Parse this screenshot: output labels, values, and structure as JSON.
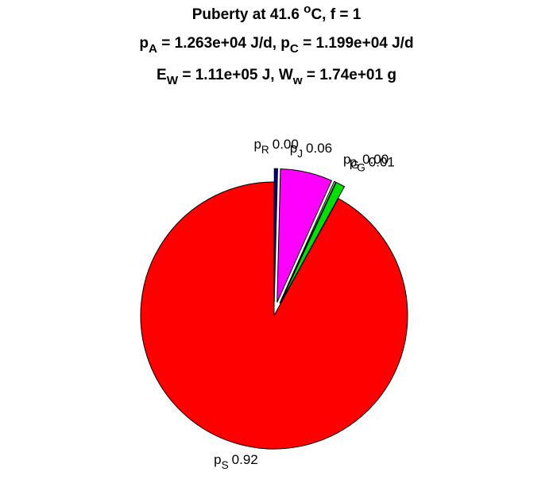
{
  "chart_data": {
    "type": "pie",
    "title_lines": [
      [
        {
          "text": "Puberty at 41.6 "
        },
        {
          "text": "o",
          "shift": "sup"
        },
        {
          "text": "C, f = 1"
        }
      ],
      [
        {
          "text": "p"
        },
        {
          "text": "A",
          "shift": "sub"
        },
        {
          "text": " = 1.263e+04 J/d,  p"
        },
        {
          "text": "C",
          "shift": "sub"
        },
        {
          "text": " = 1.199e+04 J/d"
        }
      ],
      [
        {
          "text": "E"
        },
        {
          "text": "W",
          "shift": "sub"
        },
        {
          "text": " = 1.11e+05 J, W"
        },
        {
          "text": "w",
          "shift": "sub"
        },
        {
          "text": " = 1.74e+01 g"
        }
      ]
    ],
    "categories": [
      [
        {
          "text": "p"
        },
        {
          "text": "R",
          "shift": "sub"
        }
      ],
      [
        {
          "text": "p"
        },
        {
          "text": "J",
          "shift": "sub"
        }
      ],
      [
        {
          "text": "p"
        },
        {
          "text": "G",
          "shift": "sub"
        }
      ],
      [
        {
          "text": "p"
        },
        {
          "text": "G",
          "shift": "sub"
        }
      ],
      [
        {
          "text": "p"
        },
        {
          "text": "S",
          "shift": "sub"
        }
      ]
    ],
    "values": [
      0.004,
      0.063,
      0.002,
      0.011,
      0.92
    ],
    "value_labels": [
      "0.00",
      "0.06",
      "0.00",
      "0.01",
      "0.92"
    ],
    "colors": [
      "#000080",
      "#ff00ff",
      "#80ff80",
      "#00e000",
      "#ff0000"
    ],
    "explode": [
      1,
      1,
      1,
      1,
      0
    ]
  }
}
